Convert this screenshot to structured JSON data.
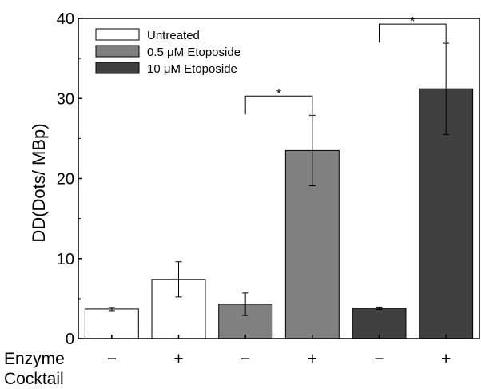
{
  "chart_data": {
    "type": "bar",
    "title": "",
    "ylabel": "DD(Dots/ MBp)",
    "xlabel": "",
    "ylim": [
      0,
      40
    ],
    "yticks": [
      0,
      10,
      20,
      30,
      40
    ],
    "row_labels": [
      "Enzyme",
      "Cocktail"
    ],
    "categories": [
      "−",
      "+",
      "−",
      "+",
      "−",
      "+"
    ],
    "values": [
      3.7,
      7.4,
      4.3,
      23.5,
      3.8,
      31.2
    ],
    "errors": [
      0.2,
      2.2,
      1.4,
      4.4,
      0.15,
      5.7
    ],
    "bar_series": [
      0,
      0,
      1,
      1,
      2,
      2
    ],
    "series": [
      {
        "name": "Untreated",
        "color": "#ffffff"
      },
      {
        "name": "0.5 μM Etoposide",
        "color": "#808080"
      },
      {
        "name": "10 μM  Etoposide",
        "color": "#404040"
      }
    ],
    "legend_position": "top-left",
    "significance": [
      {
        "bars": [
          2,
          3
        ],
        "label": "*"
      },
      {
        "bars": [
          4,
          5
        ],
        "label": "*"
      }
    ],
    "grid": false
  }
}
